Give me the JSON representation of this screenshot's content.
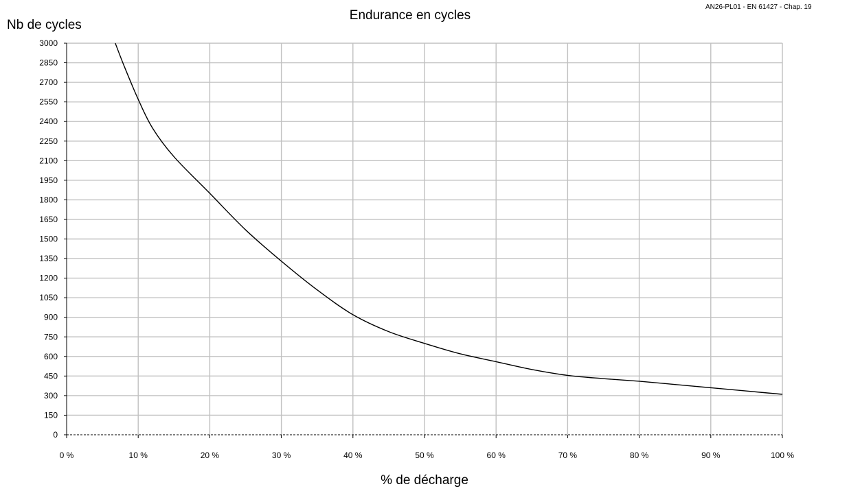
{
  "chart_data": {
    "type": "line",
    "title": "Endurance en cycles",
    "ylabel": "Nb de cycles",
    "xlabel": "% de décharge",
    "note": "AN26-PL01 - EN 61427 - Chap. 19",
    "xlim": [
      0,
      100
    ],
    "ylim": [
      0,
      3000
    ],
    "x_ticks": [
      0,
      10,
      20,
      30,
      40,
      50,
      60,
      70,
      80,
      90,
      100
    ],
    "x_tick_labels": [
      "0 %",
      "10 %",
      "20 %",
      "30 %",
      "40 %",
      "50 %",
      "60 %",
      "70 %",
      "80 %",
      "90 %",
      "100 %"
    ],
    "y_ticks": [
      0,
      150,
      300,
      450,
      600,
      750,
      900,
      1050,
      1200,
      1350,
      1500,
      1650,
      1800,
      1950,
      2100,
      2250,
      2400,
      2550,
      2700,
      2850,
      3000
    ],
    "y_tick_labels": [
      "0",
      "150",
      "300",
      "450",
      "600",
      "750",
      "900",
      "1050",
      "1200",
      "1350",
      "1500",
      "1650",
      "1800",
      "1950",
      "2100",
      "2250",
      "2400",
      "2550",
      "2700",
      "2850",
      "3000"
    ],
    "grid": true,
    "series": [
      {
        "x": [
          6.8,
          8,
          10,
          12,
          15,
          20,
          25,
          30,
          35,
          40,
          45,
          50,
          55,
          60,
          65,
          70,
          75,
          80,
          85,
          90,
          95,
          100
        ],
        "y": [
          3000,
          2830,
          2570,
          2350,
          2130,
          1850,
          1570,
          1330,
          1110,
          920,
          790,
          700,
          620,
          560,
          500,
          455,
          430,
          410,
          385,
          360,
          335,
          310
        ]
      }
    ],
    "colors": {
      "grid": "#c0c0c0",
      "line": "#000000",
      "axis": "#000000",
      "baseline": "#000000"
    }
  }
}
